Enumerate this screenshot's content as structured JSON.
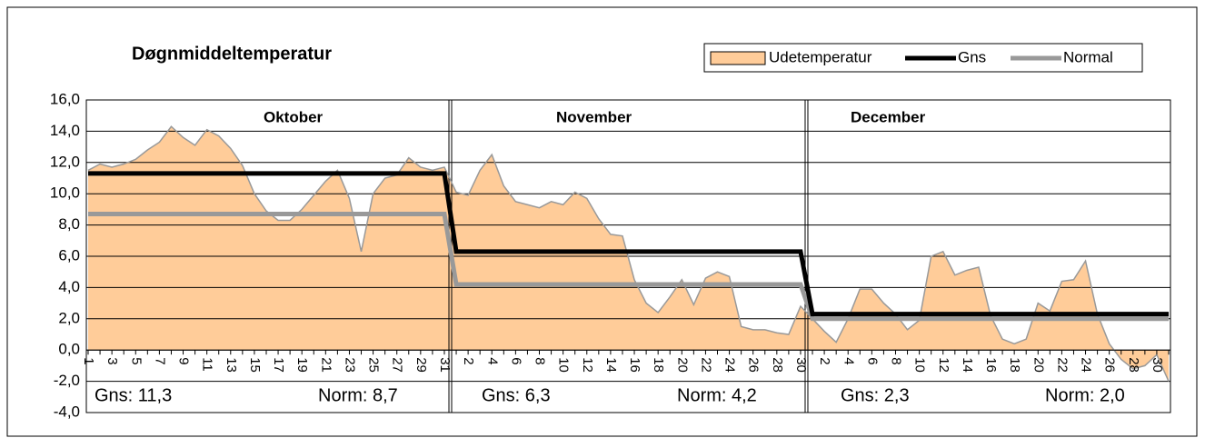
{
  "chart_data": {
    "type": "area",
    "title": "Døgnmiddeltemperatur",
    "months": [
      "Oktober",
      "November",
      "December"
    ],
    "annotations": [
      "Gns: 11,3",
      "Norm: 8,7",
      "Gns: 6,3",
      "Norm: 4,2",
      "Gns: 2,3",
      "Norm: 2,0"
    ],
    "categories": [
      "1",
      null,
      "3",
      null,
      "5",
      null,
      "7",
      null,
      "9",
      null,
      "11",
      null,
      "13",
      null,
      "15",
      null,
      "17",
      null,
      "19",
      null,
      "21",
      null,
      "23",
      null,
      "25",
      null,
      "27",
      null,
      "29",
      null,
      "31",
      null,
      "2",
      null,
      "4",
      null,
      "6",
      null,
      "8",
      null,
      "10",
      null,
      "12",
      null,
      "14",
      null,
      "16",
      null,
      "18",
      null,
      "20",
      null,
      "22",
      null,
      "24",
      null,
      "26",
      null,
      "28",
      null,
      "30",
      null,
      "2",
      null,
      "4",
      null,
      "6",
      null,
      "8",
      null,
      "10",
      null,
      "12",
      null,
      "14",
      null,
      "16",
      null,
      "18",
      null,
      "20",
      null,
      "22",
      null,
      "24",
      null,
      "26",
      null,
      "28",
      null,
      "30",
      null
    ],
    "series": [
      {
        "name": "Udetemperatur",
        "color": "#ffcc99",
        "stroke": "#999999",
        "kind": "area",
        "values": [
          11.5,
          11.9,
          11.7,
          11.9,
          12.2,
          12.8,
          13.3,
          14.3,
          13.6,
          13.1,
          14.1,
          13.7,
          12.9,
          11.8,
          10.0,
          8.9,
          8.3,
          8.3,
          9.0,
          9.9,
          10.8,
          11.5,
          9.7,
          6.3,
          10.0,
          11.0,
          11.2,
          12.3,
          11.7,
          11.5,
          11.7,
          10.1,
          9.9,
          11.5,
          12.5,
          10.5,
          9.5,
          9.3,
          9.1,
          9.5,
          9.3,
          10.1,
          9.7,
          8.4,
          7.4,
          7.3,
          4.5,
          3.0,
          2.4,
          3.4,
          4.5,
          2.9,
          4.6,
          5.0,
          4.7,
          1.5,
          1.3,
          1.3,
          1.1,
          1.0,
          2.8,
          2.0,
          1.2,
          0.5,
          2.0,
          3.9,
          3.9,
          3.0,
          2.3,
          1.3,
          1.9,
          6.0,
          6.3,
          4.8,
          5.1,
          5.3,
          2.2,
          0.7,
          0.4,
          0.7,
          3.0,
          2.5,
          4.4,
          4.5,
          5.7,
          2.3,
          0.4,
          -0.6,
          -1.2,
          -1.0,
          -0.3,
          -2.0
        ]
      },
      {
        "name": "Gns",
        "color": "#000000",
        "kind": "line",
        "values": [
          11.3,
          11.3,
          11.3,
          11.3,
          11.3,
          11.3,
          11.3,
          11.3,
          11.3,
          11.3,
          11.3,
          11.3,
          11.3,
          11.3,
          11.3,
          11.3,
          11.3,
          11.3,
          11.3,
          11.3,
          11.3,
          11.3,
          11.3,
          11.3,
          11.3,
          11.3,
          11.3,
          11.3,
          11.3,
          11.3,
          11.3,
          6.3,
          6.3,
          6.3,
          6.3,
          6.3,
          6.3,
          6.3,
          6.3,
          6.3,
          6.3,
          6.3,
          6.3,
          6.3,
          6.3,
          6.3,
          6.3,
          6.3,
          6.3,
          6.3,
          6.3,
          6.3,
          6.3,
          6.3,
          6.3,
          6.3,
          6.3,
          6.3,
          6.3,
          6.3,
          6.3,
          2.3,
          2.3,
          2.3,
          2.3,
          2.3,
          2.3,
          2.3,
          2.3,
          2.3,
          2.3,
          2.3,
          2.3,
          2.3,
          2.3,
          2.3,
          2.3,
          2.3,
          2.3,
          2.3,
          2.3,
          2.3,
          2.3,
          2.3,
          2.3,
          2.3,
          2.3,
          2.3,
          2.3,
          2.3,
          2.3,
          2.3
        ]
      },
      {
        "name": "Normal",
        "color": "#999999",
        "kind": "line",
        "values": [
          8.7,
          8.7,
          8.7,
          8.7,
          8.7,
          8.7,
          8.7,
          8.7,
          8.7,
          8.7,
          8.7,
          8.7,
          8.7,
          8.7,
          8.7,
          8.7,
          8.7,
          8.7,
          8.7,
          8.7,
          8.7,
          8.7,
          8.7,
          8.7,
          8.7,
          8.7,
          8.7,
          8.7,
          8.7,
          8.7,
          8.7,
          4.2,
          4.2,
          4.2,
          4.2,
          4.2,
          4.2,
          4.2,
          4.2,
          4.2,
          4.2,
          4.2,
          4.2,
          4.2,
          4.2,
          4.2,
          4.2,
          4.2,
          4.2,
          4.2,
          4.2,
          4.2,
          4.2,
          4.2,
          4.2,
          4.2,
          4.2,
          4.2,
          4.2,
          4.2,
          4.2,
          2.0,
          2.0,
          2.0,
          2.0,
          2.0,
          2.0,
          2.0,
          2.0,
          2.0,
          2.0,
          2.0,
          2.0,
          2.0,
          2.0,
          2.0,
          2.0,
          2.0,
          2.0,
          2.0,
          2.0,
          2.0,
          2.0,
          2.0,
          2.0,
          2.0,
          2.0,
          2.0,
          2.0,
          2.0,
          2.0,
          2.0
        ]
      }
    ],
    "ylim": [
      -4,
      16
    ],
    "yticks": [
      {
        "value": -4,
        "label": "-4,0"
      },
      {
        "value": -2,
        "label": "-2,0"
      },
      {
        "value": 0,
        "label": "0,0"
      },
      {
        "value": 2,
        "label": "2,0"
      },
      {
        "value": 4,
        "label": "4,0"
      },
      {
        "value": 6,
        "label": "6,0"
      },
      {
        "value": 8,
        "label": "8,0"
      },
      {
        "value": 10,
        "label": "10,0"
      },
      {
        "value": 12,
        "label": "12,0"
      },
      {
        "value": 14,
        "label": "14,0"
      },
      {
        "value": 16,
        "label": "16,0"
      }
    ],
    "grid": true
  }
}
